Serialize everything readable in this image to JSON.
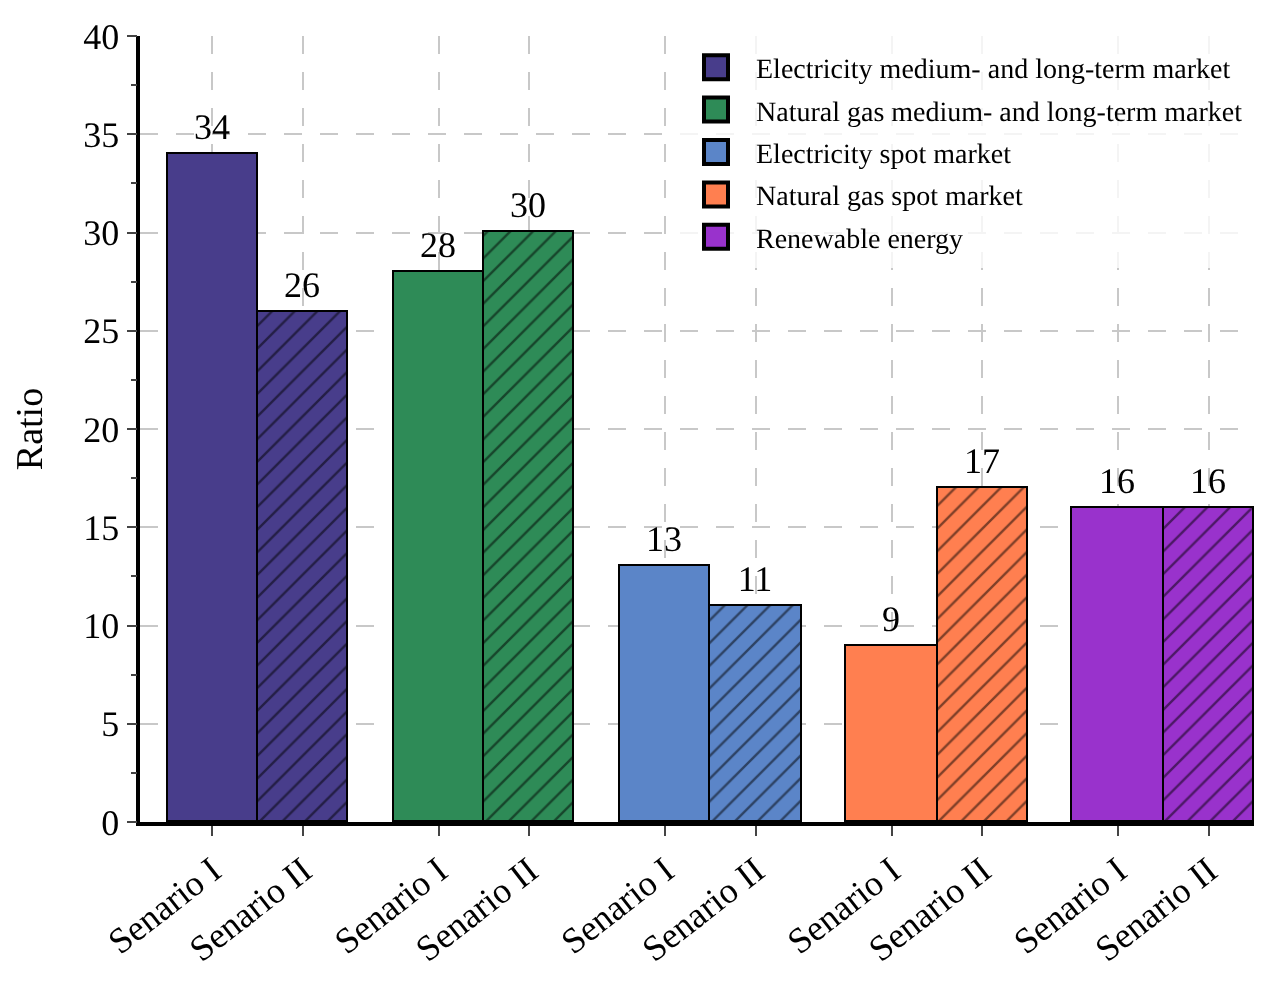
{
  "chart_data": {
    "type": "bar",
    "ylabel": "Ratio",
    "categories": [
      "Senario I",
      "Senario II",
      "Senario I",
      "Senario II",
      "Senario I",
      "Senario II",
      "Senario I",
      "Senario II",
      "Senario I",
      "Senario II"
    ],
    "series": [
      {
        "name": "Electricity medium- and long-term market",
        "color": "#483d8b",
        "values": [
          34,
          26,
          null,
          null,
          null,
          null,
          null,
          null,
          null,
          null
        ]
      },
      {
        "name": "Natural gas medium- and long-term market",
        "color": "#2e8b57",
        "values": [
          null,
          null,
          28,
          30,
          null,
          null,
          null,
          null,
          null,
          null
        ]
      },
      {
        "name": "Electricity spot market",
        "color": "#5b85c8",
        "values": [
          null,
          null,
          null,
          null,
          13,
          11,
          null,
          null,
          null,
          null
        ]
      },
      {
        "name": "Natural gas spot market",
        "color": "#ff7f50",
        "values": [
          null,
          null,
          null,
          null,
          null,
          null,
          9,
          17,
          null,
          null
        ]
      },
      {
        "name": "Renewable energy",
        "color": "#9932cc",
        "values": [
          null,
          null,
          null,
          null,
          null,
          null,
          null,
          null,
          16,
          16
        ]
      }
    ],
    "ylim": [
      0,
      40
    ],
    "yticks": [
      0,
      5,
      10,
      15,
      20,
      25,
      30,
      35,
      40
    ],
    "grid": true,
    "legend": "top right",
    "data_labels": true
  }
}
